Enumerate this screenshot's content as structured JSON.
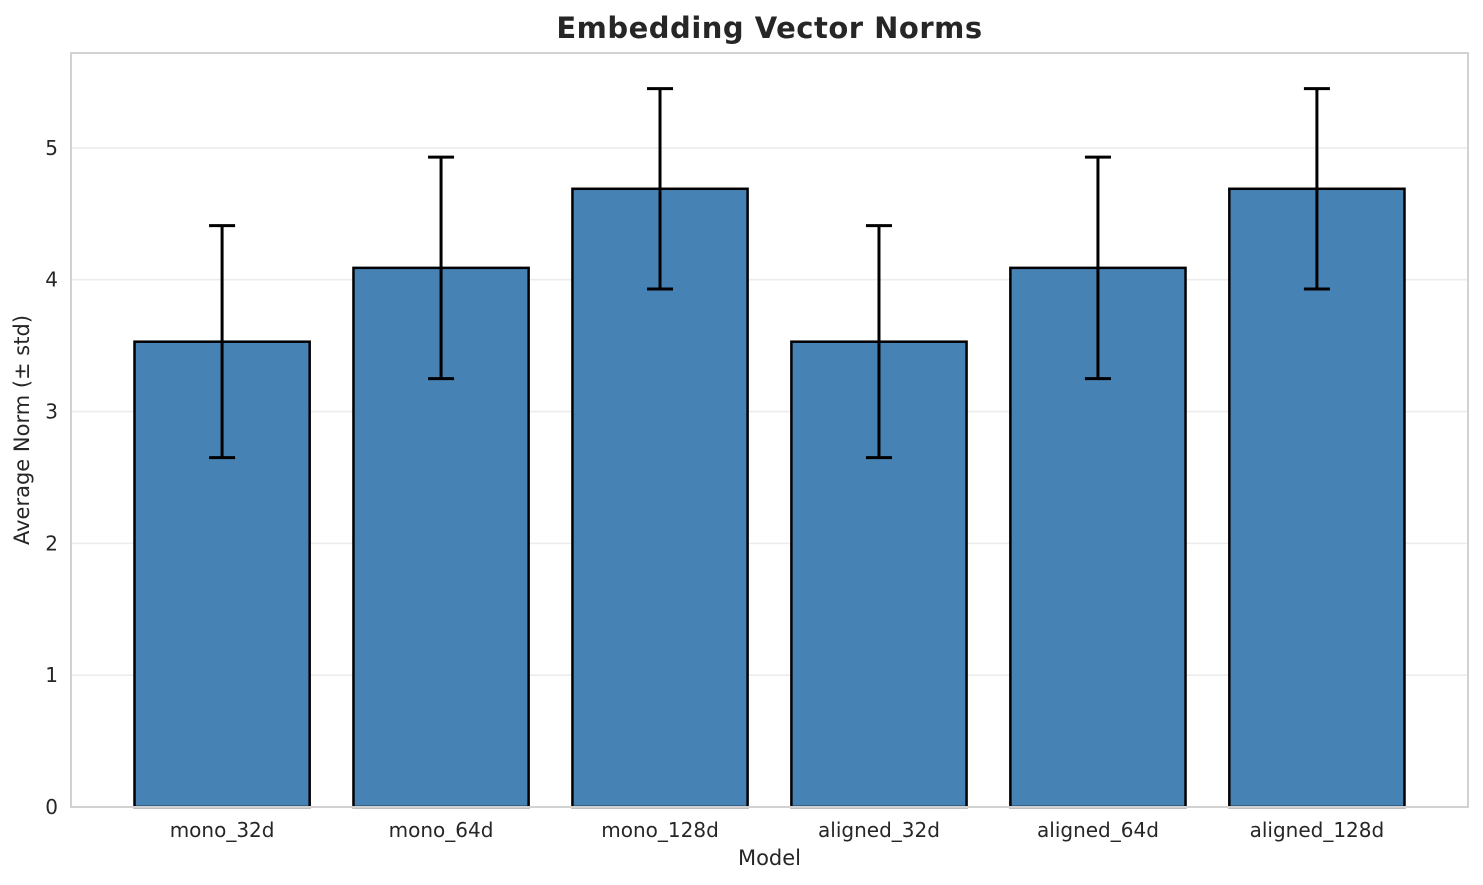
{
  "chart_data": {
    "type": "bar",
    "title": "Embedding Vector Norms",
    "xlabel": "Model",
    "ylabel": "Average Norm (± std)",
    "categories": [
      "mono_32d",
      "mono_64d",
      "mono_128d",
      "aligned_32d",
      "aligned_64d",
      "aligned_128d"
    ],
    "values": [
      3.53,
      4.09,
      4.69,
      3.53,
      4.09,
      4.69
    ],
    "errors": [
      0.88,
      0.84,
      0.76,
      0.88,
      0.84,
      0.76
    ],
    "yticks": [
      0,
      1,
      2,
      3,
      4,
      5
    ],
    "ylim": [
      0,
      5.72
    ],
    "xlim": [
      -0.69,
      5.69
    ],
    "bar_width_fraction": 0.8,
    "grid": true,
    "legend_position": "none",
    "colors": {
      "bar_fill": "#4682b4",
      "bar_edge": "#000000",
      "error_bar": "#000000",
      "grid_line": "#ececec",
      "spine": "#d2d2d2",
      "text": "#262626",
      "background": "#ffffff"
    }
  }
}
